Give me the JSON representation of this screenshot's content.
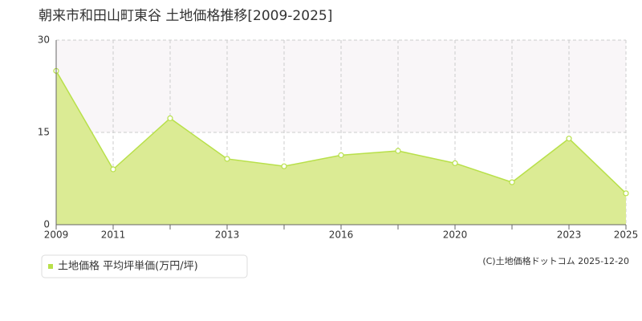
{
  "chart_data": {
    "type": "area",
    "title": "朝来市和田山町東谷 土地価格推移[2009-2025]",
    "categories": [
      "2009",
      "2011",
      null,
      "2013",
      null,
      "2016",
      null,
      "2020",
      null,
      "2023",
      "2025"
    ],
    "series": [
      {
        "name": "土地価格 平均坪単価(万円/坪)",
        "color": "#b8e04a",
        "fill": "#dbeb94",
        "values": [
          25,
          9,
          17.3,
          10.7,
          9.5,
          11.3,
          12,
          10,
          6.9,
          14,
          5.1
        ]
      }
    ],
    "ylim": [
      0,
      30
    ],
    "yticks": [
      0,
      15,
      30
    ],
    "grid": true,
    "copyright": "(C)土地価格ドットコム 2025-12-20"
  }
}
